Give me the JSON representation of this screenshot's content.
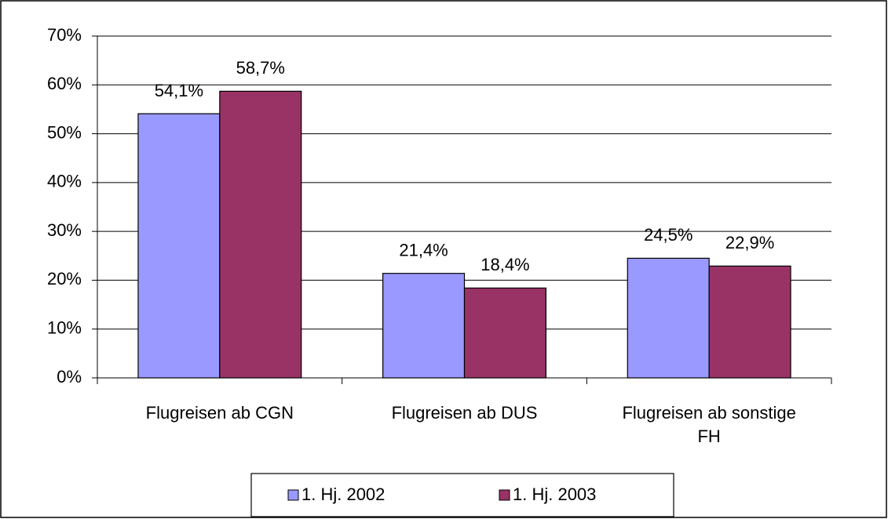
{
  "chart_data": {
    "type": "bar",
    "categories": [
      "Flugreisen ab CGN",
      "Flugreisen ab DUS",
      "Flugreisen ab sonstige FH"
    ],
    "series": [
      {
        "name": "1. Hj. 2002",
        "color": "#9999ff",
        "values": [
          54.1,
          21.4,
          24.5
        ],
        "value_labels": [
          "54,1%",
          "21,4%",
          "24,5%"
        ]
      },
      {
        "name": "1. Hj. 2003",
        "color": "#993366",
        "values": [
          58.7,
          18.4,
          22.9
        ],
        "value_labels": [
          "58,7%",
          "18,4%",
          "22,9%"
        ]
      }
    ],
    "ylim": [
      0,
      70
    ],
    "yticks": [
      {
        "value": 0,
        "label": "0%"
      },
      {
        "value": 10,
        "label": "10%"
      },
      {
        "value": 20,
        "label": "20%"
      },
      {
        "value": 30,
        "label": "30%"
      },
      {
        "value": 40,
        "label": "40%"
      },
      {
        "value": 50,
        "label": "50%"
      },
      {
        "value": 60,
        "label": "60%"
      },
      {
        "value": 70,
        "label": "70%"
      }
    ],
    "grid": true,
    "legend": "bottom"
  }
}
